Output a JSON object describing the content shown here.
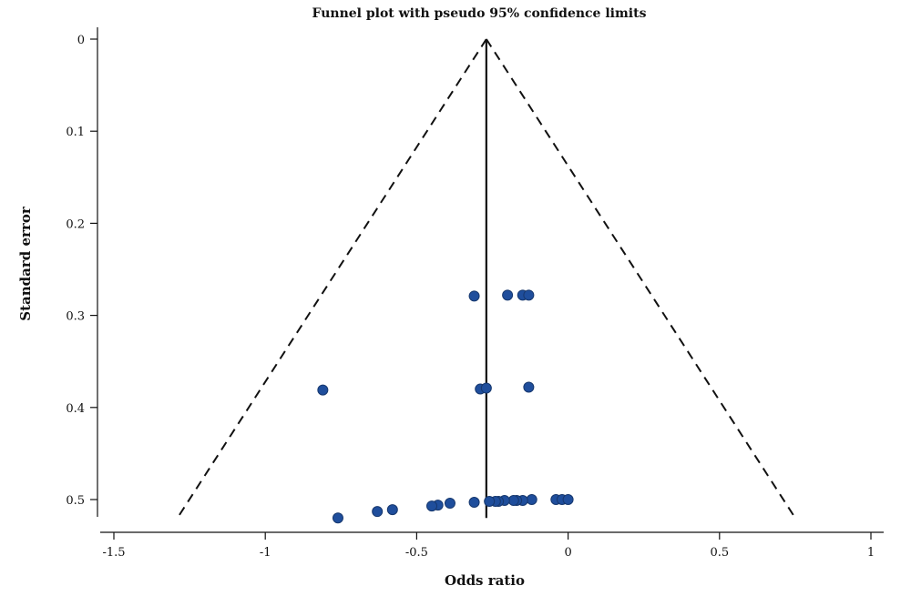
{
  "chart_data": {
    "type": "scatter",
    "title": "Funnel plot with pseudo 95% confidence limits",
    "xlabel": "Odds ratio",
    "ylabel": "Standard error",
    "xlim": [
      -1.5,
      1
    ],
    "ylim": [
      0,
      0.52
    ],
    "y_reversed": true,
    "x_ticks": [
      -1.5,
      -1,
      -0.5,
      0,
      0.5,
      1
    ],
    "x_tick_labels": [
      "-1.5",
      "-1",
      "-0.5",
      "0",
      "0.5",
      "1"
    ],
    "y_ticks": [
      0,
      0.1,
      0.2,
      0.3,
      0.4,
      0.5
    ],
    "y_tick_labels": [
      "0",
      "0.1",
      "0.2",
      "0.3",
      "0.4",
      "0.5"
    ],
    "pooled_estimate": -0.27,
    "ci_limits": {
      "apex": [
        -0.27,
        0
      ],
      "left_end": [
        -1.29,
        0.52
      ],
      "right_end": [
        0.75,
        0.52
      ]
    },
    "points": [
      {
        "x": -0.31,
        "y": 0.279
      },
      {
        "x": -0.2,
        "y": 0.278
      },
      {
        "x": -0.15,
        "y": 0.278
      },
      {
        "x": -0.13,
        "y": 0.278
      },
      {
        "x": -0.81,
        "y": 0.381
      },
      {
        "x": -0.29,
        "y": 0.38
      },
      {
        "x": -0.27,
        "y": 0.379
      },
      {
        "x": -0.13,
        "y": 0.378
      },
      {
        "x": -0.04,
        "y": 0.5
      },
      {
        "x": -0.02,
        "y": 0.5
      },
      {
        "x": 0.0,
        "y": 0.5
      },
      {
        "x": -0.12,
        "y": 0.5
      },
      {
        "x": -0.15,
        "y": 0.501
      },
      {
        "x": -0.17,
        "y": 0.501
      },
      {
        "x": -0.18,
        "y": 0.501
      },
      {
        "x": -0.21,
        "y": 0.501
      },
      {
        "x": -0.23,
        "y": 0.502
      },
      {
        "x": -0.24,
        "y": 0.502
      },
      {
        "x": -0.26,
        "y": 0.502
      },
      {
        "x": -0.31,
        "y": 0.503
      },
      {
        "x": -0.39,
        "y": 0.504
      },
      {
        "x": -0.43,
        "y": 0.506
      },
      {
        "x": -0.45,
        "y": 0.507
      },
      {
        "x": -0.58,
        "y": 0.511
      },
      {
        "x": -0.63,
        "y": 0.513
      },
      {
        "x": -0.76,
        "y": 0.52
      }
    ],
    "colors": {
      "point_fill": "#1f4e9c",
      "point_stroke": "#17386e",
      "lines": "#111111"
    }
  }
}
